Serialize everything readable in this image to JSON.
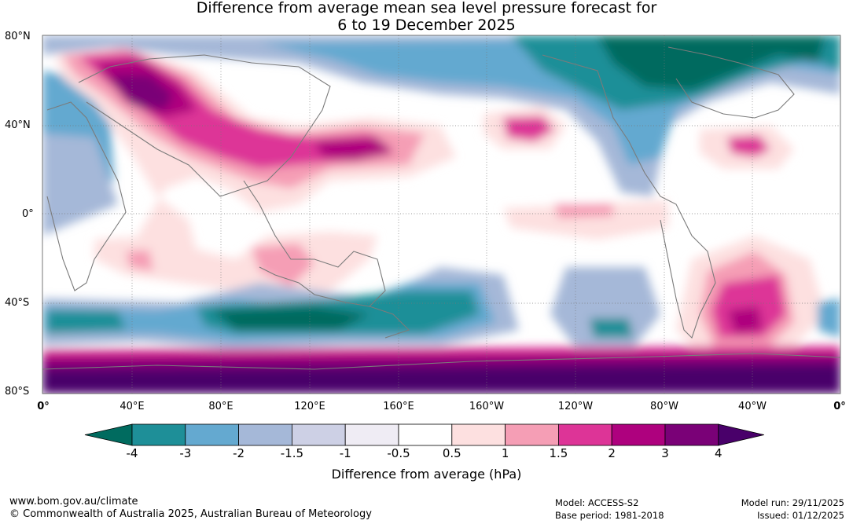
{
  "title": {
    "line1": "Difference from average mean sea level pressure forecast for",
    "line2": "6 to 19 December 2025"
  },
  "lat_labels": [
    "80°N",
    "40°N",
    "0°",
    "40°S",
    "80°S"
  ],
  "lon_labels": [
    "0°",
    "40°E",
    "80°E",
    "120°E",
    "160°E",
    "160°W",
    "120°W",
    "80°W",
    "40°W",
    "0°"
  ],
  "colorbar": {
    "title": "Difference from average (hPa)",
    "ticks": [
      "-4",
      "-3",
      "-2",
      "-1.5",
      "-1",
      "-0.5",
      "0.5",
      "1",
      "1.5",
      "2",
      "3",
      "4"
    ],
    "colors": [
      "#006b5f",
      "#1e8f98",
      "#64a9d0",
      "#a5b8d8",
      "#cdd0e5",
      "#efecf4",
      "#ffffff",
      "#fde0e0",
      "#f59eb5",
      "#dd3497",
      "#ae017e",
      "#7a0177",
      "#49006a"
    ]
  },
  "footer": {
    "website": "www.bom.gov.au/climate",
    "copyright": "© Commonwealth of Australia 2025, Australian Bureau of Meteorology",
    "model": "Model: ACCESS-S2",
    "base_period": "Base period: 1981-2018",
    "model_run": "Model run: 29/11/2025",
    "issued": "Issued: 01/12/2025"
  }
}
